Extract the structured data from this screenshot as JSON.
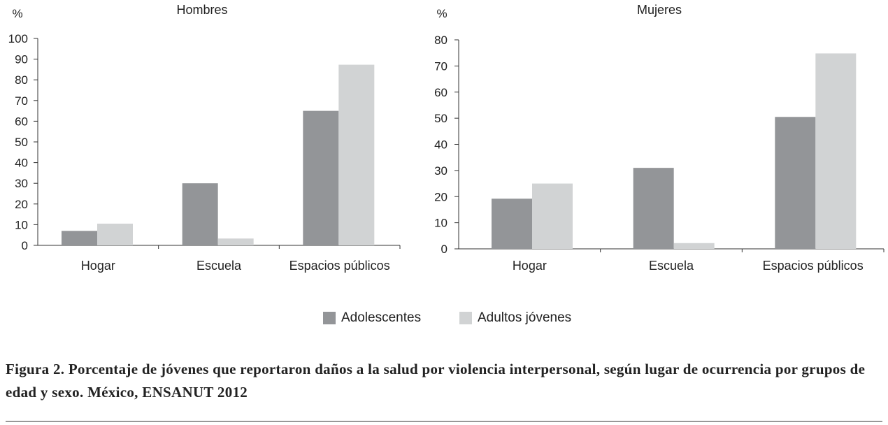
{
  "colors": {
    "adolescentes": "#939598",
    "adultos": "#d1d3d4",
    "axis": "#333333"
  },
  "legend": [
    {
      "label": "Adolescentes",
      "color": "#939598"
    },
    {
      "label": "Adultos jóvenes",
      "color": "#d1d3d4"
    }
  ],
  "caption": "Figura 2. Porcentaje de jóvenes que reportaron daños a la salud por violencia interpersonal, según lugar de ocurrencia por grupos de edad y sexo. México, ENSANUT 2012",
  "chart_data": [
    {
      "type": "bar",
      "title": "Hombres",
      "ylabel": "%",
      "categories": [
        "Hogar",
        "Escuela",
        "Espacios públicos"
      ],
      "ylim": [
        0,
        100
      ],
      "yticks": [
        0,
        10,
        20,
        30,
        40,
        50,
        60,
        70,
        80,
        90,
        100
      ],
      "series": [
        {
          "name": "Adolescentes",
          "values": [
            7,
            30,
            65
          ]
        },
        {
          "name": "Adultos jóvenes",
          "values": [
            10.5,
            3.3,
            87.3
          ]
        }
      ]
    },
    {
      "type": "bar",
      "title": "Mujeres",
      "ylabel": "%",
      "categories": [
        "Hogar",
        "Escuela",
        "Espacios públicos"
      ],
      "ylim": [
        0,
        80
      ],
      "yticks": [
        0,
        10,
        20,
        30,
        40,
        50,
        60,
        70,
        80
      ],
      "series": [
        {
          "name": "Adolescentes",
          "values": [
            19.2,
            31,
            50.5
          ]
        },
        {
          "name": "Adultos jóvenes",
          "values": [
            25,
            2.2,
            74.8
          ]
        }
      ]
    }
  ]
}
